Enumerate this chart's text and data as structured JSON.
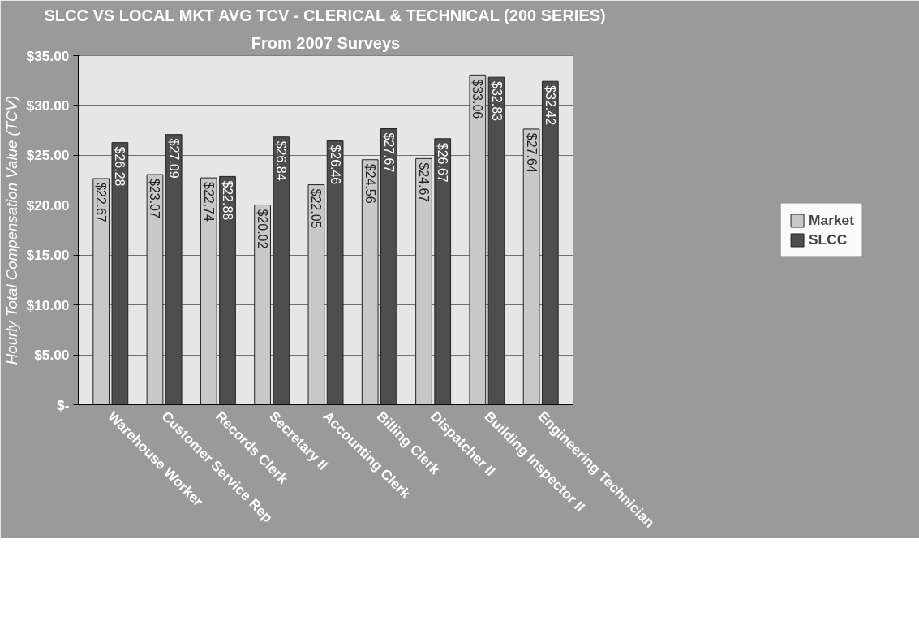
{
  "chart_data": {
    "type": "bar",
    "title": "SLCC VS LOCAL MKT AVG TCV - CLERICAL & TECHNICAL (200 SERIES)",
    "subtitle": "From 2007 Surveys",
    "ylabel": "Hourly Total Compensation Value (TCV)",
    "categories": [
      "Warehouse Worker",
      "Customer Service Rep",
      "Records Clerk",
      "Secretary II",
      "Accounting Clerk",
      "Billing Clerk",
      "Dispatcher II",
      "Building Inspector II",
      "Engineering Technician"
    ],
    "series": [
      {
        "name": "Market",
        "color": "#c8c8c8",
        "values": [
          22.67,
          23.07,
          22.74,
          20.02,
          22.05,
          24.56,
          24.67,
          33.06,
          27.64
        ],
        "value_labels": [
          "$22.67",
          "$23.07",
          "$22.74",
          "$20.02",
          "$22.05",
          "$24.56",
          "$24.67",
          "$33.06",
          "$27.64"
        ]
      },
      {
        "name": "SLCC",
        "color": "#4d4d4d",
        "values": [
          26.28,
          27.09,
          22.88,
          26.84,
          26.46,
          27.67,
          26.67,
          32.83,
          32.42
        ],
        "value_labels": [
          "$26.28",
          "$27.09",
          "$22.88",
          "$26.84",
          "$26.46",
          "$27.67",
          "$26.67",
          "$32.83",
          "$32.42"
        ]
      }
    ],
    "ylim": [
      0,
      35
    ],
    "yticks": [
      {
        "value": 0,
        "label": "$-"
      },
      {
        "value": 5,
        "label": "$5.00"
      },
      {
        "value": 10,
        "label": "$10.00"
      },
      {
        "value": 15,
        "label": "$15.00"
      },
      {
        "value": 20,
        "label": "$20.00"
      },
      {
        "value": 25,
        "label": "$25.00"
      },
      {
        "value": 30,
        "label": "$30.00"
      },
      {
        "value": 35,
        "label": "$35.00"
      }
    ],
    "grid": "y",
    "legend": "right"
  }
}
